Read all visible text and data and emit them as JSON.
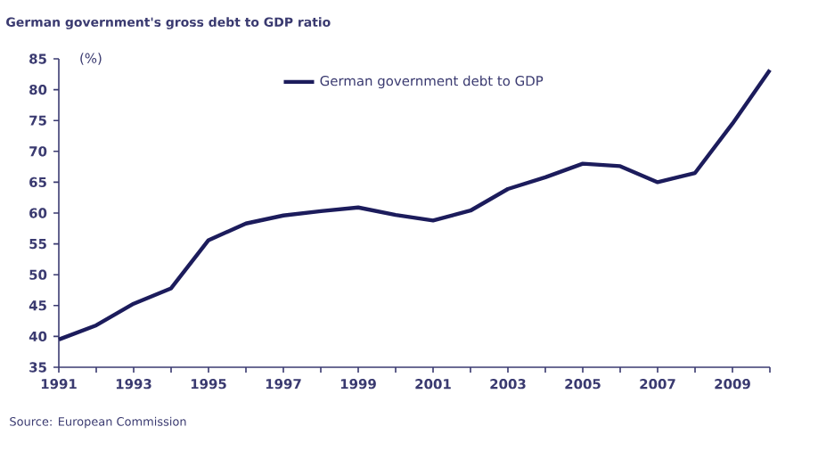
{
  "chart_data": {
    "type": "line",
    "title": "German government's gross debt to GDP ratio",
    "annotations": [
      "(%)",
      "Source: European Commission"
    ],
    "x": [
      1991,
      1992,
      1993,
      1994,
      1995,
      1996,
      1997,
      1998,
      1999,
      2000,
      2001,
      2002,
      2003,
      2004,
      2005,
      2006,
      2007,
      2008,
      2009,
      2010
    ],
    "series": [
      {
        "name": "German government debt to GDP",
        "color": "#1c1c5c",
        "values": [
          39.5,
          41.8,
          45.3,
          47.8,
          55.6,
          58.3,
          59.6,
          60.3,
          60.9,
          59.7,
          58.8,
          60.4,
          63.9,
          65.8,
          68.0,
          67.6,
          65.0,
          66.5,
          74.5,
          83.2
        ]
      }
    ],
    "xlim": [
      1991,
      2010
    ],
    "xticks": [
      1991,
      {
        "value": 1992,
        "label": null
      },
      1993,
      {
        "value": 1994,
        "label": null
      },
      1995,
      {
        "value": 1996,
        "label": null
      },
      1997,
      {
        "value": 1998,
        "label": null
      },
      1999,
      {
        "value": 2000,
        "label": null
      },
      2001,
      {
        "value": 2002,
        "label": null
      },
      2003,
      {
        "value": 2004,
        "label": null
      },
      2005,
      {
        "value": 2006,
        "label": null
      },
      2007,
      {
        "value": 2008,
        "label": null
      },
      2009,
      {
        "value": 2010,
        "label": null
      }
    ],
    "ylim": [
      35,
      85
    ],
    "yticks": [
      35,
      40,
      45,
      50,
      55,
      60,
      65,
      70,
      75,
      80,
      85
    ],
    "grid": false,
    "legend": "top",
    "marker": "none",
    "line_style": "solid"
  }
}
